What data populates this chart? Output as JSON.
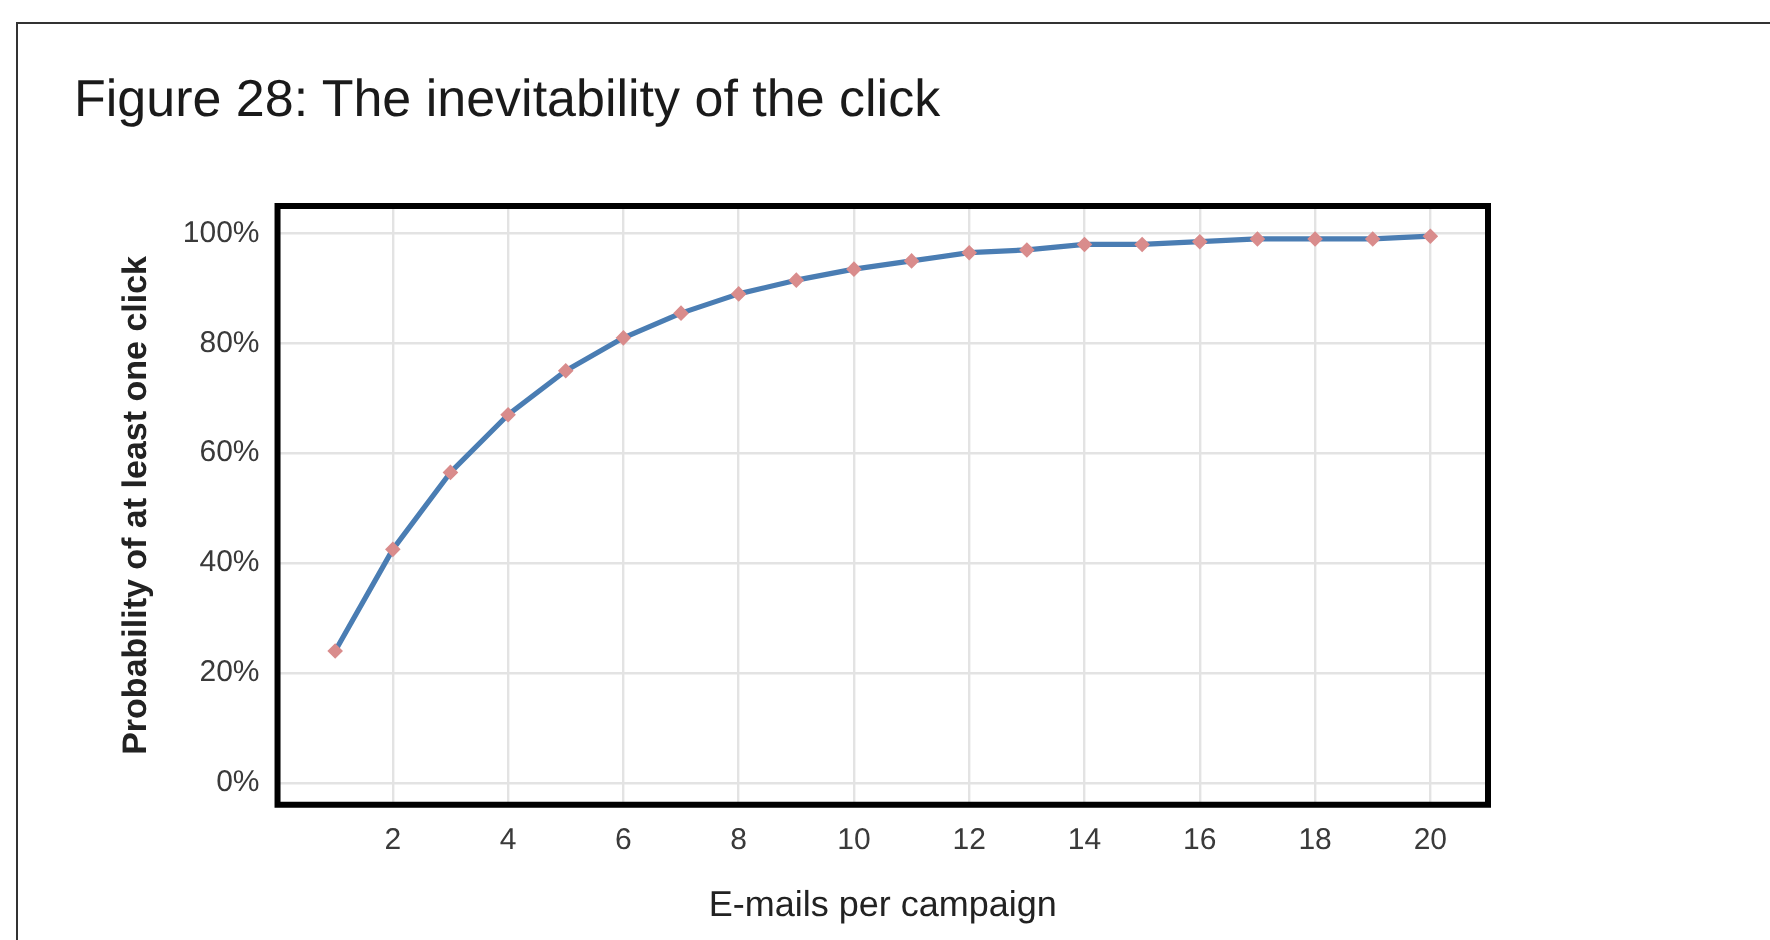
{
  "chart_data": {
    "type": "line",
    "title": "Figure 28: The inevitability of the click",
    "xlabel": "E-mails per campaign",
    "ylabel": "Probability of at least one click",
    "x": [
      1,
      2,
      3,
      4,
      5,
      6,
      7,
      8,
      9,
      10,
      11,
      12,
      13,
      14,
      15,
      16,
      17,
      18,
      19,
      20
    ],
    "series": [
      {
        "color": "#4a7db3",
        "colors": [
          "#d98c8c",
          "#d98c8c",
          "#d98c8c",
          "#d98c8c",
          "#d98c8c",
          "#d98c8c",
          "#d98c8c",
          "#d98c8c",
          "#d98c8c",
          "#d98c8c",
          "#d98c8c",
          "#d98c8c",
          "#d98c8c",
          "#d98c8c",
          "#d98c8c",
          "#d98c8c",
          "#d98c8c",
          "#d98c8c",
          "#d98c8c",
          "#d98c8c"
        ],
        "values": [
          24,
          42.5,
          56.5,
          67,
          75,
          81,
          85.5,
          89,
          91.5,
          93.5,
          95,
          96.5,
          97,
          98,
          98,
          98.5,
          99,
          99,
          99,
          99.5
        ]
      }
    ],
    "xlim": [
      0,
      21
    ],
    "xticks": [
      2,
      4,
      6,
      8,
      10,
      12,
      14,
      16,
      18,
      20
    ],
    "ylim": [
      -4,
      105
    ],
    "yticks": [
      {
        "value": 0,
        "label": "0%"
      },
      {
        "value": 20,
        "label": "20%"
      },
      {
        "value": 40,
        "label": "40%"
      },
      {
        "value": 60,
        "label": "60%"
      },
      {
        "value": 80,
        "label": "80%"
      },
      {
        "value": 100,
        "label": "100%"
      }
    ],
    "grid": true,
    "marker": "diamond",
    "line_style": "solid"
  }
}
